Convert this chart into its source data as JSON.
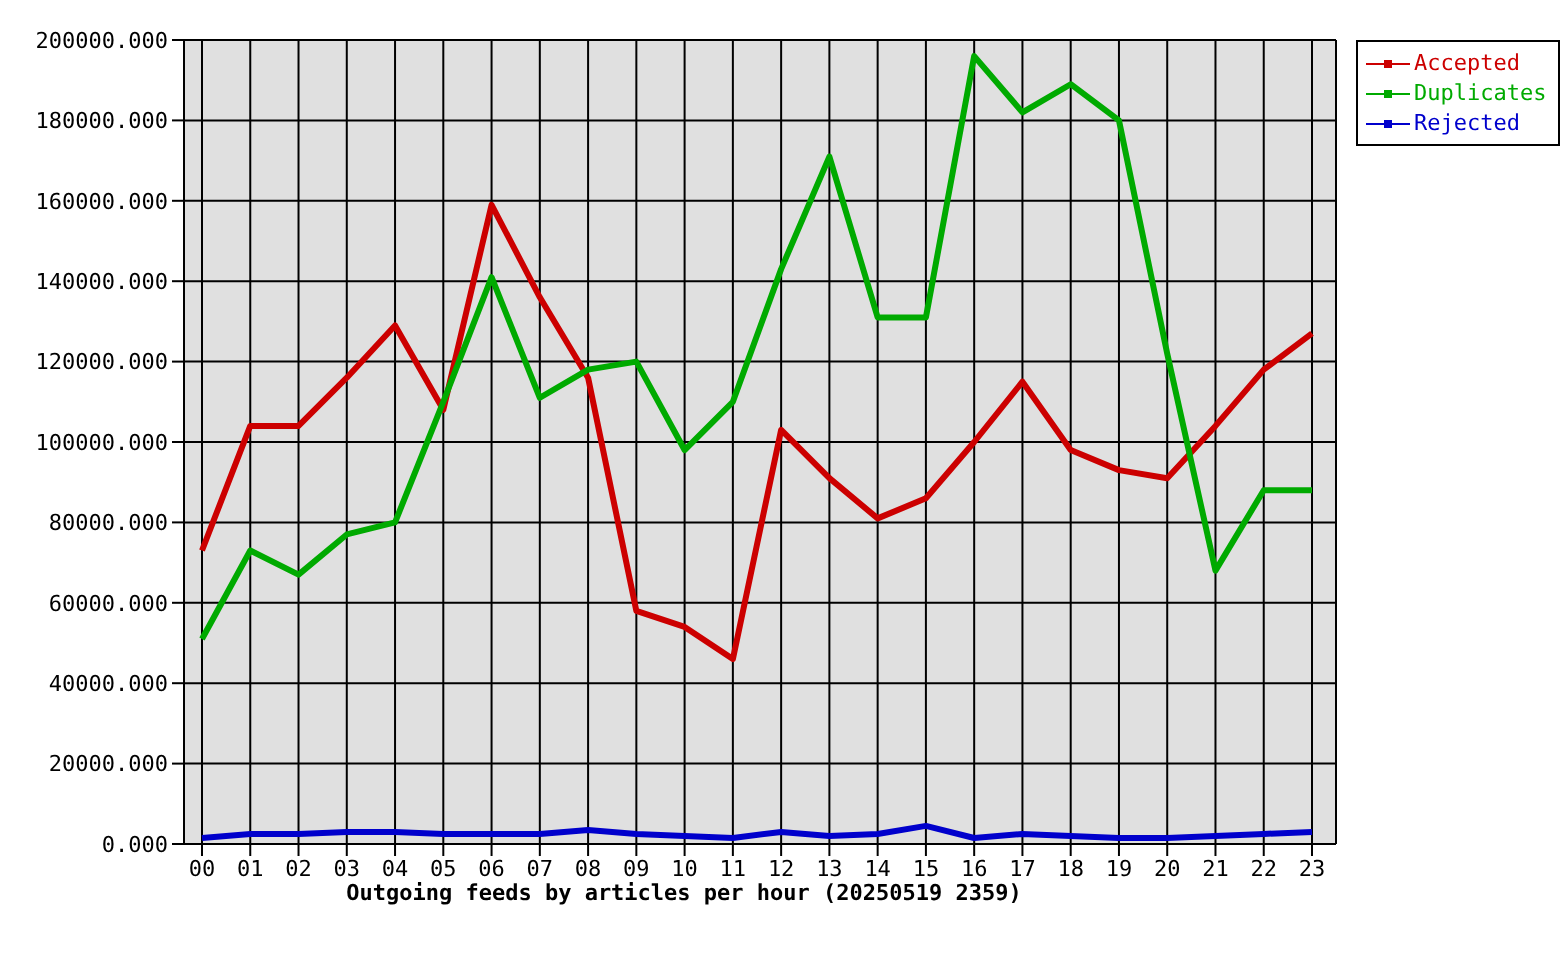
{
  "chart_data": {
    "type": "line",
    "xlabel": "Outgoing feeds by articles per hour (20250519 2359)",
    "categories": [
      "00",
      "01",
      "02",
      "03",
      "04",
      "05",
      "06",
      "07",
      "08",
      "09",
      "10",
      "11",
      "12",
      "13",
      "14",
      "15",
      "16",
      "17",
      "18",
      "19",
      "20",
      "21",
      "22",
      "23"
    ],
    "series": [
      {
        "name": "Accepted",
        "color": "#cc0000",
        "values": [
          73000,
          104000,
          104000,
          116000,
          129000,
          108000,
          159000,
          136000,
          116000,
          58000,
          54000,
          46000,
          103000,
          91000,
          81000,
          86000,
          100000,
          115000,
          98000,
          93000,
          91000,
          104000,
          118000,
          127000
        ]
      },
      {
        "name": "Duplicates",
        "color": "#00aa00",
        "values": [
          51000,
          73000,
          67000,
          77000,
          80000,
          110000,
          141000,
          111000,
          118000,
          120000,
          98000,
          110000,
          143000,
          171000,
          131000,
          131000,
          196000,
          182000,
          189000,
          180000,
          122000,
          68000,
          88000,
          88000
        ]
      },
      {
        "name": "Rejected",
        "color": "#0000cc",
        "values": [
          1500,
          2500,
          2500,
          3000,
          3000,
          2500,
          2500,
          2500,
          3500,
          2500,
          2000,
          1500,
          3000,
          2000,
          2500,
          4500,
          1500,
          2500,
          2000,
          1500,
          1500,
          2000,
          2500,
          3000
        ]
      }
    ],
    "ylim": [
      0,
      200000
    ],
    "yticks": [
      {
        "value": 0,
        "label": "0.000"
      },
      {
        "value": 20000,
        "label": "20000.000"
      },
      {
        "value": 40000,
        "label": "40000.000"
      },
      {
        "value": 60000,
        "label": "60000.000"
      },
      {
        "value": 80000,
        "label": "80000.000"
      },
      {
        "value": 100000,
        "label": "100000.000"
      },
      {
        "value": 120000,
        "label": "120000.000"
      },
      {
        "value": 140000,
        "label": "140000.000"
      },
      {
        "value": 160000,
        "label": "160000.000"
      },
      {
        "value": 180000,
        "label": "180000.000"
      },
      {
        "value": 200000,
        "label": "200000.000"
      }
    ],
    "grid": true,
    "legend": "top right",
    "marker": "none",
    "line_style": "solid"
  }
}
